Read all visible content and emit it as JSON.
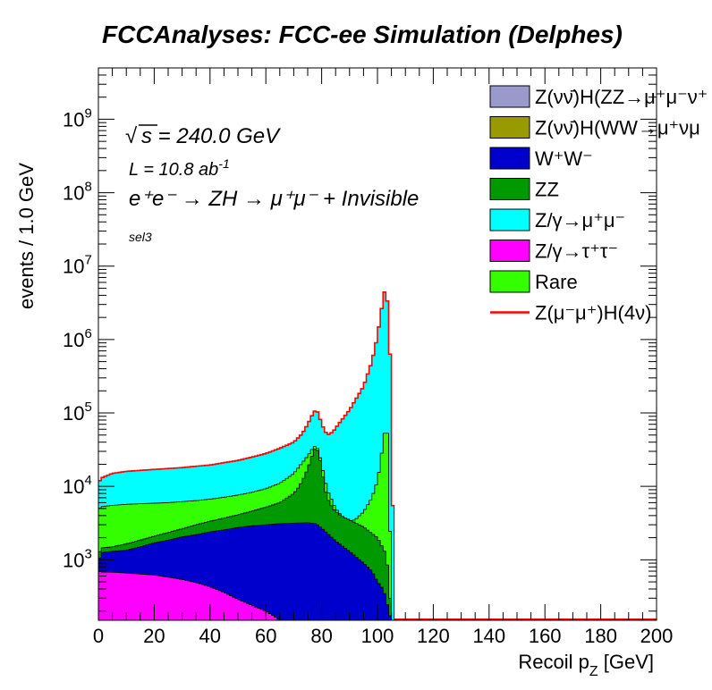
{
  "colors": {
    "signal_vvZZ": "#9999cc",
    "signal_vvWW": "#999900",
    "WW": "#0000cc",
    "ZZ": "#009900",
    "Zmumu": "#00ffff",
    "Ztautau": "#ff00ff",
    "Rare": "#33ff00",
    "signal_line": "#ff0000"
  },
  "chart_data": {
    "type": "area",
    "stacked": true,
    "log_y": true,
    "title": "FCCAnalyses: FCC-ee Simulation (Delphes)",
    "xlabel": "Recoil p_{Z} [GeV]",
    "xlabel_main": "Recoil p",
    "xlabel_sub": "Z",
    "xlabel_unit": " [GeV]",
    "ylabel": "events / 1.0 GeV",
    "xlim": [
      0,
      200
    ],
    "ylim": [
      150,
      5000000000
    ],
    "xticks": [
      0,
      20,
      40,
      60,
      80,
      100,
      120,
      140,
      160,
      180,
      200
    ],
    "yticks": [
      {
        "base": "10",
        "exp": "3",
        "value": 1000
      },
      {
        "base": "10",
        "exp": "4",
        "value": 10000
      },
      {
        "base": "10",
        "exp": "5",
        "value": 100000
      },
      {
        "base": "10",
        "exp": "6",
        "value": 1000000
      },
      {
        "base": "10",
        "exp": "7",
        "value": 10000000
      },
      {
        "base": "10",
        "exp": "8",
        "value": 100000000
      },
      {
        "base": "10",
        "exp": "9",
        "value": 1000000000
      }
    ],
    "annotations": {
      "sqrts": "s = 240.0 GeV",
      "lumi_main": "L = 10.8 ab",
      "lumi_exp": "-1",
      "process": "e⁺e⁻ → ZH → μ⁺μ⁻ + Invisible",
      "selection": "sel3"
    },
    "legend": {
      "placement": "top-right",
      "entries": [
        {
          "label": "Z(νν̄)H(ZZ→μ⁺μ⁻ν⁺",
          "color_key": "signal_vvZZ",
          "style": "box"
        },
        {
          "label": "Z(νν̄)H(WW→μ⁺νμ",
          "color_key": "signal_vvWW",
          "style": "box"
        },
        {
          "label": "W⁺W⁻",
          "color_key": "WW",
          "style": "box"
        },
        {
          "label": "ZZ",
          "color_key": "ZZ",
          "style": "box"
        },
        {
          "label": "Z/γ→μ⁺μ⁻",
          "color_key": "Zmumu",
          "style": "box"
        },
        {
          "label": "Z/γ→τ⁺τ⁻",
          "color_key": "Ztautau",
          "style": "box"
        },
        {
          "label": "Rare",
          "color_key": "Rare",
          "style": "box"
        },
        {
          "label": "Z(μ⁻μ⁺)H(4ν)",
          "color_key": "signal_line",
          "style": "line"
        }
      ]
    },
    "stack_order_bottom_to_top": [
      "Ztautau",
      "WW",
      "ZZ",
      "Rare",
      "Zmumu"
    ],
    "series": [
      {
        "key": "Ztautau",
        "label": "Z/γ→τ⁺τ⁻",
        "x": [
          0,
          1,
          5,
          10,
          15,
          20,
          25,
          30,
          35,
          40,
          45,
          50,
          55,
          60,
          62,
          64,
          65
        ],
        "y": [
          700,
          680,
          680,
          660,
          640,
          620,
          580,
          540,
          490,
          430,
          360,
          290,
          240,
          200,
          180,
          160,
          150
        ]
      },
      {
        "key": "WW",
        "label": "W⁺W⁻",
        "x": [
          0,
          1,
          5,
          10,
          15,
          20,
          25,
          30,
          35,
          40,
          45,
          50,
          55,
          60,
          65,
          70,
          75,
          78,
          80,
          82,
          85,
          90,
          95,
          98,
          100,
          102,
          103,
          104,
          105
        ],
        "y": [
          900,
          1250,
          1300,
          1350,
          1500,
          1700,
          1850,
          2050,
          2200,
          2400,
          2550,
          2750,
          2900,
          3000,
          3100,
          3150,
          3200,
          3100,
          2700,
          2300,
          1800,
          1300,
          900,
          700,
          500,
          400,
          300,
          200,
          150
        ]
      },
      {
        "key": "ZZ",
        "label": "ZZ",
        "x": [
          0,
          1,
          5,
          10,
          15,
          20,
          25,
          30,
          35,
          40,
          45,
          50,
          55,
          60,
          65,
          70,
          72,
          74,
          76,
          77,
          78,
          79,
          80,
          81,
          82,
          84,
          86,
          88,
          90,
          95,
          100,
          103,
          104,
          105
        ],
        "y": [
          1150,
          1450,
          1500,
          1650,
          1850,
          2100,
          2350,
          2650,
          3000,
          3350,
          3700,
          4100,
          4600,
          5200,
          6000,
          8000,
          10000,
          14000,
          22000,
          30000,
          34000,
          28000,
          18000,
          10000,
          7000,
          5000,
          4200,
          3800,
          3500,
          2800,
          2000,
          1200,
          600,
          150
        ]
      },
      {
        "key": "Rare",
        "label": "Rare",
        "x": [
          0,
          1,
          5,
          10,
          15,
          20,
          25,
          30,
          35,
          40,
          45,
          50,
          55,
          60,
          65,
          70,
          75,
          77,
          78,
          79,
          80,
          82,
          85,
          88,
          90,
          92,
          95,
          98,
          100,
          101,
          102,
          103,
          104,
          105
        ],
        "y": [
          4800,
          5300,
          5500,
          5700,
          5800,
          5900,
          6000,
          6200,
          6400,
          6700,
          7100,
          7600,
          8300,
          9300,
          11000,
          15000,
          26000,
          34000,
          36000,
          30000,
          20000,
          9000,
          5000,
          3600,
          3400,
          3500,
          4500,
          7000,
          12000,
          20000,
          40000,
          70000,
          40000,
          150
        ]
      },
      {
        "key": "Zmumu",
        "label": "Z/γ→μ⁺μ⁻",
        "x": [
          0,
          1,
          5,
          10,
          15,
          20,
          25,
          30,
          35,
          40,
          45,
          50,
          55,
          60,
          65,
          70,
          73,
          75,
          77,
          78,
          79,
          80,
          82,
          84,
          86,
          90,
          95,
          98,
          100,
          101,
          102,
          103,
          104,
          105,
          106
        ],
        "y": [
          11000,
          13000,
          15000,
          16000,
          16500,
          17000,
          17500,
          18000,
          18800,
          19500,
          21000,
          22500,
          25000,
          28000,
          33000,
          40000,
          52000,
          70000,
          100000,
          112000,
          95000,
          70000,
          50000,
          55000,
          70000,
          110000,
          230000,
          500000,
          1100000,
          2000000,
          3500000,
          5600000,
          2000000,
          200000,
          150
        ]
      }
    ],
    "signal_line": {
      "key": "signal_line",
      "label": "Z(μ⁻μ⁺)H(4ν)",
      "x": [
        106,
        200
      ],
      "y": [
        150,
        150
      ]
    }
  }
}
